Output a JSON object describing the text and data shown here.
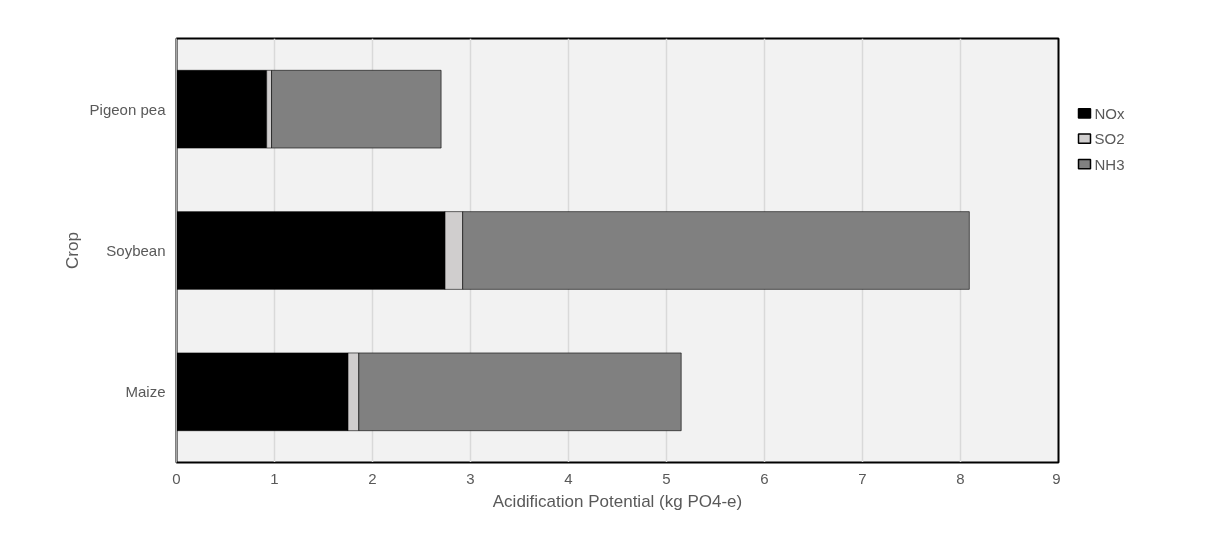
{
  "chart_data": {
    "type": "bar",
    "orientation": "horizontal",
    "stacked": true,
    "xlabel": "Acidification Potential (kg PO4-e)",
    "ylabel": "Crop",
    "categories": [
      "Pigeon pea",
      "Soybean",
      "Maize"
    ],
    "series": [
      {
        "name": "NOx",
        "color": "#000000",
        "values": [
          0.92,
          2.74,
          1.75
        ]
      },
      {
        "name": "SO2",
        "color": "#d0cece",
        "values": [
          0.05,
          0.18,
          0.11
        ]
      },
      {
        "name": "NH3",
        "color": "#808080",
        "values": [
          1.73,
          5.17,
          3.29
        ]
      }
    ],
    "xlim": [
      0,
      9
    ],
    "xticks": [
      0,
      1,
      2,
      3,
      4,
      5,
      6,
      7,
      8,
      9
    ],
    "grid": "x",
    "legend": "right"
  }
}
